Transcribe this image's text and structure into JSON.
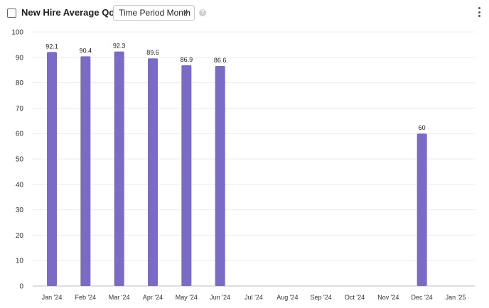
{
  "header": {
    "title": "New Hire Average QoH per",
    "select_value": "Time Period Month",
    "help_icon": "question-circle-icon",
    "menu_icon": "vertical-ellipsis-icon"
  },
  "colors": {
    "bar": "#7c6bc4"
  },
  "chart_data": {
    "type": "bar",
    "categories": [
      "Jan '24",
      "Feb '24",
      "Mar '24",
      "Apr '24",
      "May '24",
      "Jun '24",
      "Jul '24",
      "Aug '24",
      "Sep '24",
      "Oct '24",
      "Nov '24",
      "Dec '24",
      "Jan '25"
    ],
    "values": [
      92.1,
      90.4,
      92.3,
      89.6,
      86.9,
      86.6,
      null,
      null,
      null,
      null,
      null,
      60,
      null
    ],
    "data_labels": [
      "92.1",
      "90.4",
      "92.3",
      "89.6",
      "86.9",
      "86.6",
      "",
      "",
      "",
      "",
      "",
      "60",
      ""
    ],
    "ylim": [
      0,
      100
    ],
    "yticks": [
      "0",
      "10",
      "20",
      "30",
      "40",
      "50",
      "60",
      "70",
      "80",
      "90",
      "100"
    ],
    "grid": true,
    "title": "",
    "xlabel": "",
    "ylabel": ""
  }
}
